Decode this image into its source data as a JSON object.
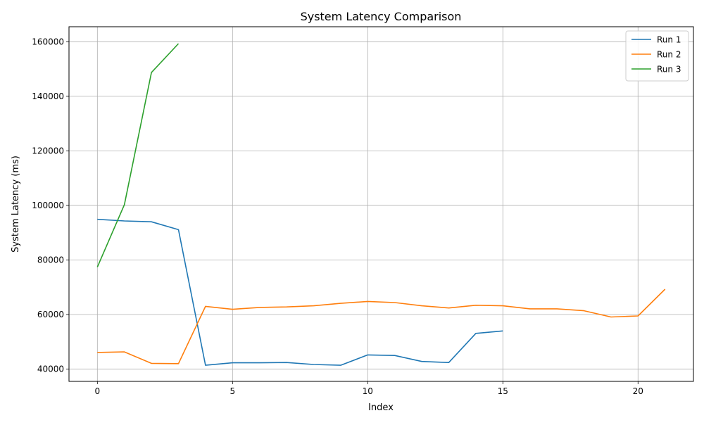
{
  "chart_data": {
    "type": "line",
    "title": "System Latency Comparison",
    "xlabel": "Index",
    "ylabel": "System Latency (ms)",
    "xlim": [
      -1.05,
      22.05
    ],
    "ylim": [
      35500,
      165500
    ],
    "xticks": [
      0,
      5,
      10,
      15,
      20
    ],
    "yticks": [
      40000,
      60000,
      80000,
      100000,
      120000,
      140000,
      160000
    ],
    "grid": true,
    "legend_position": "top-right",
    "series": [
      {
        "name": "Run 1",
        "color": "#1f77b4",
        "x": [
          0,
          1,
          2,
          3,
          4,
          5,
          6,
          7,
          8,
          9,
          10,
          11,
          12,
          13,
          14,
          15
        ],
        "values": [
          94900,
          94300,
          94000,
          91100,
          41400,
          42300,
          42300,
          42400,
          41700,
          41400,
          45200,
          45000,
          42800,
          42400,
          53100,
          54000
        ]
      },
      {
        "name": "Run 2",
        "color": "#ff7f0e",
        "x": [
          0,
          1,
          2,
          3,
          4,
          5,
          6,
          7,
          8,
          9,
          10,
          11,
          12,
          13,
          14,
          15,
          16,
          17,
          18,
          19,
          20,
          21
        ],
        "values": [
          46100,
          46300,
          42100,
          42000,
          63000,
          61900,
          62600,
          62800,
          63200,
          64100,
          64800,
          64400,
          63200,
          62400,
          63400,
          63200,
          62100,
          62100,
          61400,
          59100,
          59500,
          69300
        ]
      },
      {
        "name": "Run 3",
        "color": "#2ca02c",
        "x": [
          0,
          1,
          2,
          3
        ],
        "values": [
          77400,
          100300,
          148700,
          159300
        ]
      }
    ]
  }
}
